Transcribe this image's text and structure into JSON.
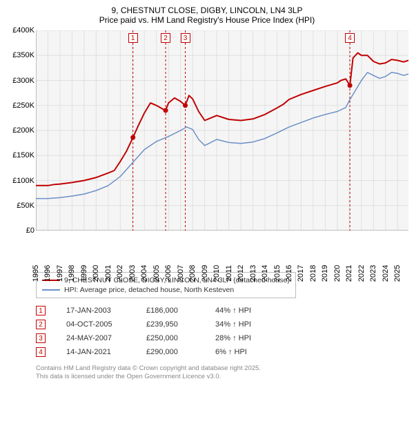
{
  "title": {
    "line1": "9, CHESTNUT CLOSE, DIGBY, LINCOLN, LN4 3LP",
    "line2": "Price paid vs. HM Land Registry's House Price Index (HPI)"
  },
  "chart": {
    "type": "line",
    "background_color": "#f5f5f5",
    "grid_color": "#e0e0e0",
    "x": {
      "min": 1995,
      "max": 2025.9,
      "ticks": [
        1995,
        1996,
        1997,
        1998,
        1999,
        2000,
        2001,
        2002,
        2003,
        2004,
        2005,
        2006,
        2007,
        2008,
        2009,
        2010,
        2011,
        2012,
        2013,
        2014,
        2015,
        2016,
        2017,
        2018,
        2019,
        2020,
        2021,
        2022,
        2023,
        2024,
        2025
      ]
    },
    "y": {
      "min": 0,
      "max": 400000,
      "step": 50000,
      "labels": [
        "£0",
        "£50K",
        "£100K",
        "£150K",
        "£200K",
        "£250K",
        "£300K",
        "£350K",
        "£400K"
      ]
    },
    "series": [
      {
        "name": "property",
        "label": "9, CHESTNUT CLOSE, DIGBY, LINCOLN, LN4 3LP (detached house)",
        "color": "#c00000",
        "width": 2,
        "points": [
          [
            1995,
            90000
          ],
          [
            1996,
            90000
          ],
          [
            1996.5,
            92000
          ],
          [
            1997,
            93000
          ],
          [
            1998,
            96000
          ],
          [
            1999,
            100000
          ],
          [
            2000,
            106000
          ],
          [
            2001,
            115000
          ],
          [
            2001.5,
            120000
          ],
          [
            2002,
            138000
          ],
          [
            2002.5,
            158000
          ],
          [
            2003.05,
            186000
          ],
          [
            2003.5,
            210000
          ],
          [
            2004,
            235000
          ],
          [
            2004.5,
            255000
          ],
          [
            2005,
            250000
          ],
          [
            2005.5,
            243000
          ],
          [
            2005.76,
            239950
          ],
          [
            2006,
            255000
          ],
          [
            2006.5,
            265000
          ],
          [
            2007,
            258000
          ],
          [
            2007.39,
            250000
          ],
          [
            2007.7,
            270000
          ],
          [
            2008,
            263000
          ],
          [
            2008.5,
            238000
          ],
          [
            2009,
            220000
          ],
          [
            2009.5,
            225000
          ],
          [
            2010,
            230000
          ],
          [
            2011,
            222000
          ],
          [
            2012,
            220000
          ],
          [
            2013,
            223000
          ],
          [
            2014,
            232000
          ],
          [
            2015,
            245000
          ],
          [
            2015.5,
            252000
          ],
          [
            2016,
            262000
          ],
          [
            2017,
            272000
          ],
          [
            2018,
            280000
          ],
          [
            2019,
            288000
          ],
          [
            2020,
            295000
          ],
          [
            2020.3,
            300000
          ],
          [
            2020.7,
            303000
          ],
          [
            2021.04,
            290000
          ],
          [
            2021.3,
            345000
          ],
          [
            2021.7,
            355000
          ],
          [
            2022,
            350000
          ],
          [
            2022.5,
            350000
          ],
          [
            2023,
            338000
          ],
          [
            2023.5,
            333000
          ],
          [
            2024,
            335000
          ],
          [
            2024.5,
            342000
          ],
          [
            2025,
            340000
          ],
          [
            2025.5,
            337000
          ],
          [
            2025.9,
            340000
          ]
        ]
      },
      {
        "name": "hpi",
        "label": "HPI: Average price, detached house, North Kesteven",
        "color": "#6b8fc6",
        "width": 1.5,
        "points": [
          [
            1995,
            64000
          ],
          [
            1996,
            64000
          ],
          [
            1997,
            66000
          ],
          [
            1998,
            69000
          ],
          [
            1999,
            73000
          ],
          [
            2000,
            80000
          ],
          [
            2001,
            90000
          ],
          [
            2002,
            108000
          ],
          [
            2003,
            135000
          ],
          [
            2004,
            162000
          ],
          [
            2005,
            178000
          ],
          [
            2006,
            188000
          ],
          [
            2007,
            200000
          ],
          [
            2007.5,
            207000
          ],
          [
            2008,
            202000
          ],
          [
            2008.5,
            182000
          ],
          [
            2009,
            170000
          ],
          [
            2009.5,
            176000
          ],
          [
            2010,
            182000
          ],
          [
            2011,
            176000
          ],
          [
            2012,
            174000
          ],
          [
            2013,
            177000
          ],
          [
            2014,
            184000
          ],
          [
            2015,
            195000
          ],
          [
            2016,
            207000
          ],
          [
            2017,
            216000
          ],
          [
            2018,
            225000
          ],
          [
            2019,
            232000
          ],
          [
            2020,
            238000
          ],
          [
            2020.7,
            246000
          ],
          [
            2021,
            260000
          ],
          [
            2021.5,
            280000
          ],
          [
            2022,
            300000
          ],
          [
            2022.5,
            316000
          ],
          [
            2023,
            310000
          ],
          [
            2023.5,
            304000
          ],
          [
            2024,
            308000
          ],
          [
            2024.5,
            316000
          ],
          [
            2025,
            314000
          ],
          [
            2025.5,
            310000
          ],
          [
            2025.9,
            313000
          ]
        ]
      }
    ],
    "sale_markers": [
      {
        "n": "1",
        "x": 2003.05,
        "y": 186000
      },
      {
        "n": "2",
        "x": 2005.76,
        "y": 239950
      },
      {
        "n": "3",
        "x": 2007.39,
        "y": 250000
      },
      {
        "n": "4",
        "x": 2021.04,
        "y": 290000
      }
    ],
    "vline_color": "#c00000",
    "vline_dash": "3,3",
    "point_fill": "#c00000"
  },
  "legend": {
    "items": [
      {
        "color": "#c00000",
        "label": "9, CHESTNUT CLOSE, DIGBY, LINCOLN, LN4 3LP (detached house)"
      },
      {
        "color": "#6b8fc6",
        "label": "HPI: Average price, detached house, North Kesteven"
      }
    ]
  },
  "sales": [
    {
      "n": "1",
      "date": "17-JAN-2003",
      "price": "£186,000",
      "delta": "44% ↑ HPI"
    },
    {
      "n": "2",
      "date": "04-OCT-2005",
      "price": "£239,950",
      "delta": "34% ↑ HPI"
    },
    {
      "n": "3",
      "date": "24-MAY-2007",
      "price": "£250,000",
      "delta": "28% ↑ HPI"
    },
    {
      "n": "4",
      "date": "14-JAN-2021",
      "price": "£290,000",
      "delta": "6% ↑ HPI"
    }
  ],
  "footer": {
    "line1": "Contains HM Land Registry data © Crown copyright and database right 2025.",
    "line2": "This data is licensed under the Open Government Licence v3.0."
  }
}
